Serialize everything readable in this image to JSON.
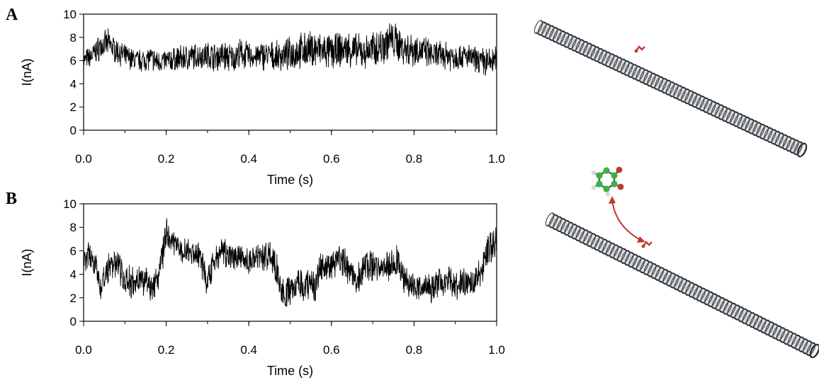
{
  "panel_labels": {
    "a": "A",
    "b": "B"
  },
  "colors": {
    "trace": "#000000",
    "nanotube": "#3b3f46",
    "arrow": "#c0392b",
    "carbon_atom": "#3cb043",
    "oxygen_atom": "#c0392b",
    "hydrogen_atom": "#d8d8d8"
  },
  "chart_data": [
    {
      "type": "line",
      "panel": "A",
      "xlabel": "Time (s)",
      "ylabel": "I(nA)",
      "xlim": [
        0,
        1.0
      ],
      "ylim": [
        0,
        10
      ],
      "xticks": [
        "0.0",
        "0.2",
        "0.4",
        "0.6",
        "0.8",
        "1.0"
      ],
      "yticks": [
        "0",
        "2",
        "4",
        "6",
        "8",
        "10"
      ],
      "grid": false,
      "x": [
        0.0,
        0.02,
        0.04,
        0.06,
        0.08,
        0.1,
        0.12,
        0.14,
        0.16,
        0.18,
        0.2,
        0.22,
        0.24,
        0.26,
        0.28,
        0.3,
        0.32,
        0.34,
        0.36,
        0.38,
        0.4,
        0.42,
        0.44,
        0.46,
        0.48,
        0.5,
        0.52,
        0.54,
        0.56,
        0.58,
        0.6,
        0.62,
        0.64,
        0.66,
        0.68,
        0.7,
        0.72,
        0.74,
        0.76,
        0.78,
        0.8,
        0.82,
        0.84,
        0.86,
        0.88,
        0.9,
        0.92,
        0.94,
        0.96,
        0.98,
        1.0
      ],
      "y": [
        6.0,
        6.4,
        7.2,
        7.5,
        6.8,
        6.4,
        6.1,
        6.0,
        6.2,
        5.9,
        6.0,
        6.1,
        6.2,
        6.3,
        6.4,
        6.5,
        6.3,
        6.4,
        6.2,
        6.6,
        6.4,
        6.3,
        6.5,
        6.3,
        6.4,
        6.6,
        6.8,
        6.9,
        7.0,
        6.8,
        6.7,
        6.9,
        7.0,
        6.8,
        6.7,
        7.0,
        7.2,
        7.8,
        7.5,
        7.0,
        7.0,
        6.8,
        6.5,
        6.4,
        6.5,
        6.3,
        6.4,
        6.2,
        6.0,
        5.8,
        6.1
      ],
      "spread": [
        0.7,
        0.8,
        1.0,
        1.0,
        0.9,
        0.8,
        0.8,
        0.8,
        0.9,
        0.8,
        0.8,
        0.9,
        1.0,
        1.0,
        0.9,
        1.0,
        1.0,
        1.2,
        1.0,
        1.1,
        1.0,
        1.0,
        1.1,
        1.1,
        1.1,
        1.2,
        1.3,
        1.3,
        1.4,
        1.3,
        1.3,
        1.3,
        1.3,
        1.3,
        1.2,
        1.3,
        1.4,
        1.5,
        1.4,
        1.3,
        1.3,
        1.2,
        1.1,
        1.1,
        1.1,
        1.0,
        1.0,
        0.9,
        0.9,
        1.2,
        1.0
      ]
    },
    {
      "type": "line",
      "panel": "B",
      "xlabel": "Time (s)",
      "ylabel": "I(nA)",
      "xlim": [
        0,
        1.0
      ],
      "ylim": [
        0,
        10
      ],
      "xticks": [
        "0.0",
        "0.2",
        "0.4",
        "0.6",
        "0.8",
        "1.0"
      ],
      "yticks": [
        "0",
        "2",
        "4",
        "6",
        "8",
        "10"
      ],
      "grid": false,
      "x": [
        0.0,
        0.02,
        0.04,
        0.06,
        0.08,
        0.1,
        0.12,
        0.14,
        0.16,
        0.18,
        0.2,
        0.22,
        0.24,
        0.26,
        0.28,
        0.3,
        0.32,
        0.34,
        0.36,
        0.38,
        0.4,
        0.42,
        0.44,
        0.46,
        0.48,
        0.5,
        0.52,
        0.54,
        0.56,
        0.58,
        0.6,
        0.62,
        0.64,
        0.66,
        0.68,
        0.7,
        0.72,
        0.74,
        0.76,
        0.78,
        0.8,
        0.82,
        0.84,
        0.86,
        0.88,
        0.9,
        0.92,
        0.94,
        0.96,
        0.98,
        1.0
      ],
      "y": [
        5.2,
        5.8,
        2.8,
        4.5,
        5.0,
        3.5,
        3.2,
        3.8,
        3.0,
        3.4,
        7.8,
        6.6,
        6.0,
        5.8,
        5.6,
        3.2,
        5.6,
        5.8,
        5.4,
        5.6,
        5.2,
        5.4,
        5.6,
        5.2,
        2.6,
        2.4,
        3.2,
        3.0,
        3.0,
        5.0,
        4.8,
        5.2,
        4.6,
        3.2,
        4.8,
        4.6,
        4.4,
        4.8,
        5.2,
        3.4,
        2.8,
        3.2,
        2.6,
        3.4,
        3.6,
        3.0,
        3.4,
        3.2,
        4.0,
        6.2,
        6.8
      ],
      "spread": [
        0.8,
        1.2,
        0.9,
        1.2,
        1.0,
        1.1,
        1.2,
        1.2,
        1.1,
        1.2,
        1.3,
        1.0,
        1.0,
        1.0,
        1.1,
        1.2,
        1.1,
        1.0,
        1.0,
        1.0,
        1.0,
        1.0,
        1.1,
        1.2,
        1.2,
        1.1,
        1.2,
        1.2,
        1.2,
        1.2,
        1.1,
        1.2,
        1.1,
        1.2,
        1.2,
        1.1,
        1.1,
        1.2,
        1.2,
        1.1,
        1.0,
        1.1,
        1.0,
        1.1,
        1.1,
        1.0,
        1.1,
        1.1,
        1.2,
        1.3,
        1.2
      ]
    }
  ]
}
